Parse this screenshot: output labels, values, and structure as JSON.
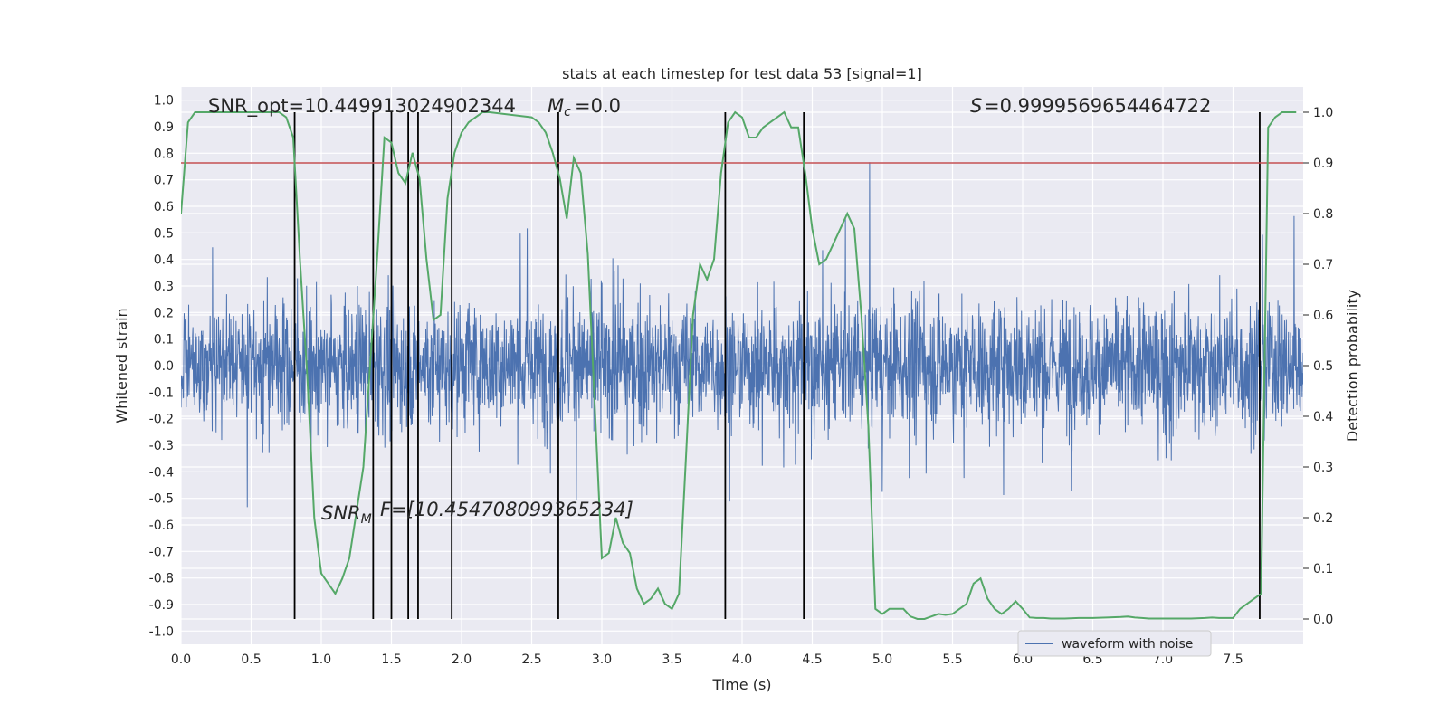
{
  "chart_data": {
    "type": "line",
    "title": "stats at each timestep for test data 53 [signal=1]",
    "xlabel": "Time (s)",
    "ylabel_left": "Whitened strain",
    "ylabel_right": "Detection probability",
    "xlim": [
      0.0,
      8.0
    ],
    "ylim_left": [
      -1.05,
      1.05
    ],
    "ylim_right": [
      -0.05,
      1.05
    ],
    "x_ticks": [
      "0.0",
      "0.5",
      "1.0",
      "1.5",
      "2.0",
      "2.5",
      "3.0",
      "3.5",
      "4.0",
      "4.5",
      "5.0",
      "5.5",
      "6.0",
      "6.5",
      "7.0",
      "7.5"
    ],
    "x_tick_values": [
      0.0,
      0.5,
      1.0,
      1.5,
      2.0,
      2.5,
      3.0,
      3.5,
      4.0,
      4.5,
      5.0,
      5.5,
      6.0,
      6.5,
      7.0,
      7.5
    ],
    "y_left_ticks": [
      "1.0",
      "0.9",
      "0.8",
      "0.7",
      "0.6",
      "0.5",
      "0.4",
      "0.3",
      "0.2",
      "0.1",
      "0.0",
      "-0.1",
      "-0.2",
      "-0.3",
      "-0.4",
      "-0.5",
      "-0.6",
      "-0.7",
      "-0.8",
      "-0.9",
      "-1.0"
    ],
    "y_left_tick_values": [
      1.0,
      0.9,
      0.8,
      0.7,
      0.6,
      0.5,
      0.4,
      0.3,
      0.2,
      0.1,
      0.0,
      -0.1,
      -0.2,
      -0.3,
      -0.4,
      -0.5,
      -0.6,
      -0.7,
      -0.8,
      -0.9,
      -1.0
    ],
    "y_right_ticks": [
      "1.0",
      "0.9",
      "0.8",
      "0.7",
      "0.6",
      "0.5",
      "0.4",
      "0.3",
      "0.2",
      "0.1",
      "0.0"
    ],
    "y_right_tick_values": [
      1.0,
      0.9,
      0.8,
      0.7,
      0.6,
      0.5,
      0.4,
      0.3,
      0.2,
      0.1,
      0.0
    ],
    "threshold": 0.9,
    "vertical_lines": [
      0.81,
      1.37,
      1.5,
      1.62,
      1.69,
      1.93,
      2.69,
      3.88,
      4.44,
      7.69
    ],
    "annotations": {
      "snr_opt": "SNR_opt=10.449913024902344",
      "mc": "=0.0",
      "s": "=0.9999569654464722",
      "snr_mf": "F=[10.454708099365234]"
    },
    "legend": [
      "waveform with noise"
    ],
    "detection_probability": {
      "x": [
        0.0,
        0.05,
        0.1,
        0.2,
        0.3,
        0.5,
        0.7,
        0.75,
        0.8,
        0.85,
        0.9,
        0.95,
        1.0,
        1.05,
        1.1,
        1.15,
        1.2,
        1.3,
        1.4,
        1.45,
        1.5,
        1.55,
        1.6,
        1.65,
        1.7,
        1.75,
        1.8,
        1.85,
        1.9,
        1.95,
        2.0,
        2.05,
        2.1,
        2.15,
        2.2,
        2.5,
        2.55,
        2.6,
        2.65,
        2.7,
        2.75,
        2.8,
        2.85,
        2.9,
        2.95,
        3.0,
        3.05,
        3.1,
        3.15,
        3.2,
        3.25,
        3.3,
        3.35,
        3.4,
        3.45,
        3.5,
        3.55,
        3.6,
        3.65,
        3.7,
        3.75,
        3.8,
        3.85,
        3.9,
        3.95,
        4.0,
        4.05,
        4.1,
        4.15,
        4.2,
        4.3,
        4.35,
        4.4,
        4.45,
        4.5,
        4.55,
        4.6,
        4.65,
        4.7,
        4.75,
        4.8,
        4.85,
        4.9,
        4.95,
        5.0,
        5.05,
        5.1,
        5.15,
        5.2,
        5.25,
        5.3,
        5.35,
        5.4,
        5.45,
        5.5,
        5.55,
        5.6,
        5.65,
        5.7,
        5.75,
        5.8,
        5.85,
        5.9,
        5.95,
        6.0,
        6.05,
        6.1,
        6.15,
        6.2,
        6.3,
        6.4,
        6.5,
        6.6,
        6.7,
        6.75,
        6.8,
        6.85,
        6.9,
        6.95,
        7.0,
        7.2,
        7.3,
        7.35,
        7.4,
        7.5,
        7.55,
        7.6,
        7.65,
        7.7,
        7.75,
        7.8,
        7.85,
        7.9,
        7.95
      ],
      "y": [
        0.8,
        0.98,
        1.0,
        1.0,
        1.0,
        1.0,
        1.0,
        0.99,
        0.95,
        0.7,
        0.48,
        0.2,
        0.09,
        0.07,
        0.05,
        0.08,
        0.12,
        0.3,
        0.72,
        0.95,
        0.94,
        0.88,
        0.86,
        0.92,
        0.87,
        0.71,
        0.59,
        0.6,
        0.83,
        0.92,
        0.96,
        0.98,
        0.99,
        1.0,
        1.0,
        0.99,
        0.98,
        0.96,
        0.92,
        0.87,
        0.79,
        0.91,
        0.88,
        0.72,
        0.42,
        0.12,
        0.13,
        0.2,
        0.15,
        0.13,
        0.06,
        0.03,
        0.04,
        0.06,
        0.03,
        0.02,
        0.05,
        0.32,
        0.6,
        0.7,
        0.67,
        0.71,
        0.88,
        0.98,
        1.0,
        0.99,
        0.95,
        0.95,
        0.97,
        0.98,
        1.0,
        0.97,
        0.97,
        0.88,
        0.77,
        0.7,
        0.71,
        0.74,
        0.77,
        0.8,
        0.77,
        0.6,
        0.38,
        0.02,
        0.01,
        0.02,
        0.02,
        0.02,
        0.005,
        0.0,
        0.0,
        0.005,
        0.01,
        0.008,
        0.01,
        0.02,
        0.03,
        0.07,
        0.08,
        0.04,
        0.02,
        0.01,
        0.02,
        0.035,
        0.02,
        0.003,
        0.002,
        0.002,
        0.001,
        0.001,
        0.002,
        0.002,
        0.003,
        0.004,
        0.005,
        0.003,
        0.002,
        0.001,
        0.001,
        0.001,
        0.001,
        0.002,
        0.003,
        0.002,
        0.002,
        0.02,
        0.03,
        0.04,
        0.05,
        0.97,
        0.99,
        1.0,
        1.0,
        1.0
      ]
    }
  }
}
